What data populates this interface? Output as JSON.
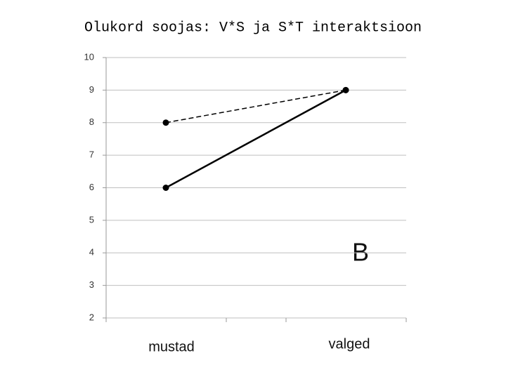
{
  "chart_data": {
    "type": "line",
    "title": "Olukord soojas: V*S ja S*T interaktsioon",
    "categories": [
      "mustad",
      "valged"
    ],
    "series": [
      {
        "color": "#000000",
        "dash": "dashed",
        "values": [
          8,
          9
        ]
      },
      {
        "color": "#000000",
        "dash": "solid",
        "values": [
          6,
          9
        ]
      }
    ],
    "ylim": [
      2,
      10
    ],
    "yticks": [
      2,
      3,
      4,
      5,
      6,
      7,
      8,
      9,
      10
    ],
    "grid": true,
    "annotation": "B"
  }
}
